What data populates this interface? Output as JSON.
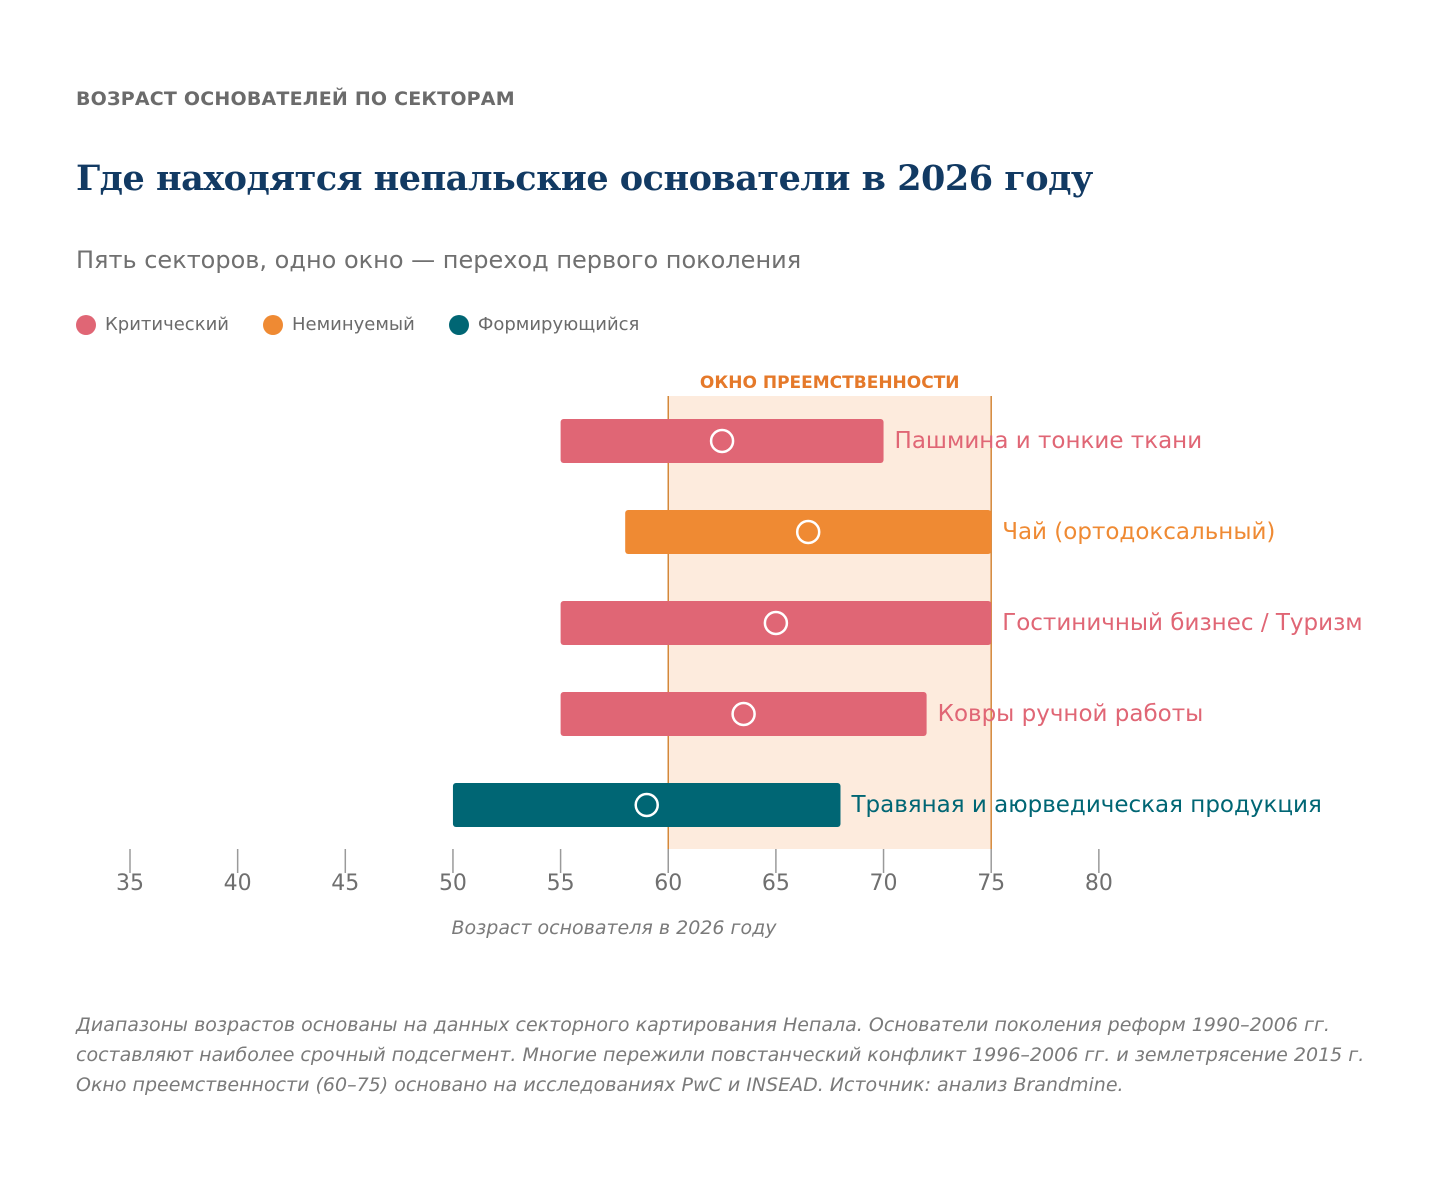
{
  "header": {
    "eyebrow": "ВОЗРАСТ ОСНОВАТЕЛЕЙ ПО СЕКТОРАМ",
    "title": "Где находятся непальские основатели в 2026 году",
    "subtitle": "Пять секторов, одно окно — переход первого поколения"
  },
  "legend": [
    {
      "label": "Критический",
      "color": "#e06675"
    },
    {
      "label": "Неминуемый",
      "color": "#ef8a33"
    },
    {
      "label": "Формирующийся",
      "color": "#006674"
    }
  ],
  "chart_data": {
    "type": "range-bar",
    "xlabel": "Возраст основателя в 2026 году",
    "xlim": [
      33,
      83
    ],
    "ticks": [
      35,
      40,
      45,
      50,
      55,
      60,
      65,
      70,
      75,
      80
    ],
    "window": {
      "label": "ОКНО ПРЕЕМСТВЕННОСТИ",
      "start": 60,
      "end": 75,
      "fill": "#fdebdd",
      "line": "#d4883a"
    },
    "series": [
      {
        "name": "Пашмина и тонкие ткани",
        "start": 55,
        "end": 70,
        "marker": 62.5,
        "status": "Критический",
        "color": "#e06675"
      },
      {
        "name": "Чай (ортодоксальный)",
        "start": 58,
        "end": 75,
        "marker": 66.5,
        "status": "Неминуемый",
        "color": "#ef8a33"
      },
      {
        "name": "Гостиничный бизнес / Туризм",
        "start": 55,
        "end": 75,
        "marker": 65,
        "status": "Критический",
        "color": "#e06675"
      },
      {
        "name": "Ковры ручной работы",
        "start": 55,
        "end": 72,
        "marker": 63.5,
        "status": "Критический",
        "color": "#e06675"
      },
      {
        "name": "Травяная и аюрведическая продукция",
        "start": 50,
        "end": 68,
        "marker": 59,
        "status": "Формирующийся",
        "color": "#006674"
      }
    ]
  },
  "footnote": "Диапазоны возрастов основаны на данных секторного картирования Непала. Основатели поколения реформ 1990–2006 гг. составляют наиболее срочный подсегмент. Многие пережили повстанческий конфликт 1996–2006 гг. и землетрясение 2015 г. Окно преемственности (60–75) основано на исследованиях PwC и INSEAD. Источник: анализ Brandmine."
}
